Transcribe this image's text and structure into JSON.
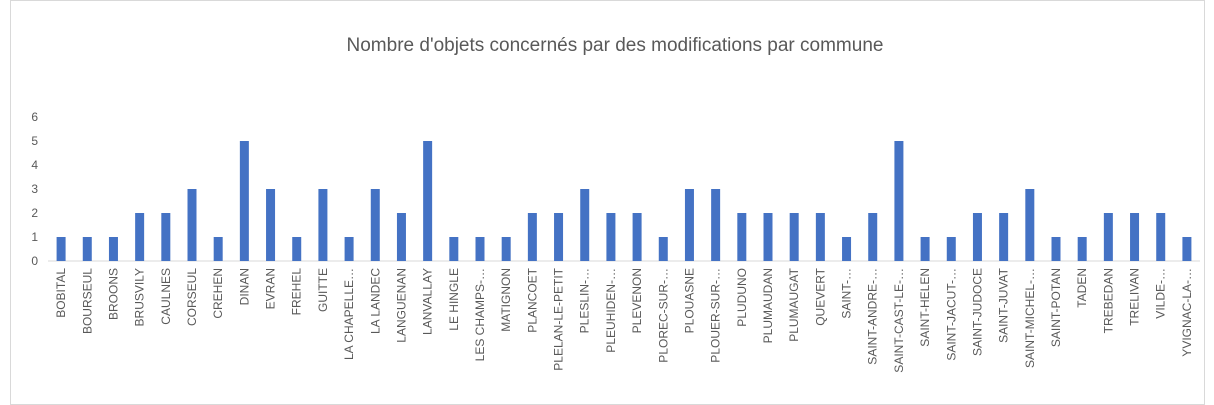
{
  "chart_data": {
    "type": "bar",
    "title": "Nombre d'objets concernés par des modifications par commune",
    "categories": [
      "BOBITAL",
      "BOURSEUL",
      "BROONS",
      "BRUSVILY",
      "CAULNES",
      "CORSEUL",
      "CREHEN",
      "DINAN",
      "EVRAN",
      "FREHEL",
      "GUITTE",
      "LA CHAPELLE…",
      "LA LANDEC",
      "LANGUENAN",
      "LANVALLAY",
      "LE HINGLE",
      "LES CHAMPS-…",
      "MATIGNON",
      "PLANCOET",
      "PLELAN-LE-PETIT",
      "PLESLIN-…",
      "PLEUHIDEN-…",
      "PLEVENON",
      "PLOREC-SUR-…",
      "PLOUASNE",
      "PLOUER-SUR-…",
      "PLUDUNO",
      "PLUMAUDAN",
      "PLUMAUGAT",
      "QUEVERT",
      "SAINT-…",
      "SAINT-ANDRE-…",
      "SAINT-CAST-LE-…",
      "SAINT-HELEN",
      "SAINT-JACUT-…",
      "SAINT-JUDOCE",
      "SAINT-JUVAT",
      "SAINT-MICHEL-…",
      "SAINT-POTAN",
      "TADEN",
      "TREBEDAN",
      "TRELIVAN",
      "VILDE-…",
      "YVIGNAC-LA-…"
    ],
    "values": [
      1,
      1,
      1,
      2,
      2,
      3,
      1,
      5,
      3,
      1,
      3,
      1,
      3,
      2,
      5,
      1,
      1,
      1,
      2,
      2,
      3,
      2,
      2,
      1,
      3,
      3,
      2,
      2,
      2,
      2,
      1,
      2,
      5,
      1,
      1,
      2,
      2,
      3,
      1,
      1,
      2,
      2,
      2,
      1
    ],
    "color": "#4472c4",
    "ylim": [
      0,
      6
    ],
    "yticks": [
      0,
      1,
      2,
      3,
      4,
      5,
      6
    ],
    "grid": false
  }
}
